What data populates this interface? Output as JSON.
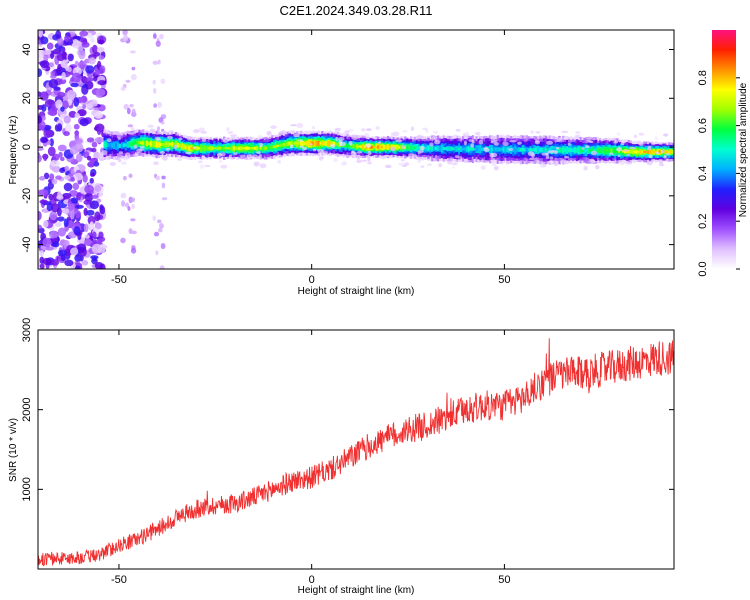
{
  "title": "C2E1.2024.349.03.28.R11",
  "chart_data": [
    {
      "type": "heatmap",
      "title": "C2E1.2024.349.03.28.R11",
      "xlabel": "Height of straight line (km)",
      "ylabel": "Frequency (Hz)",
      "xlim": [
        -71,
        94
      ],
      "ylim": [
        -50,
        48
      ],
      "x_ticks": [
        -50,
        0,
        50
      ],
      "y_ticks": [
        -40,
        -20,
        0,
        20,
        40
      ],
      "grid": false,
      "colorbar": {
        "label": "Normalized spectral amplitude",
        "range": [
          0,
          1
        ],
        "ticks": [
          "0.0",
          "0.2",
          "0.4",
          "0.6",
          "0.8"
        ],
        "colors": [
          "#ffffff",
          "#e0c0ff",
          "#a050ff",
          "#6000e0",
          "#2020ff",
          "#00b0ff",
          "#00ffd0",
          "#00ff40",
          "#a0ff00",
          "#ffff00",
          "#ff9000",
          "#ff2000",
          "#ff1080"
        ]
      },
      "noise_region_x": [
        -71,
        -54
      ],
      "ridge": [
        {
          "x": -54,
          "y": 1.0,
          "w": 3.5,
          "peak": 0.55
        },
        {
          "x": -50,
          "y": 0.5,
          "w": 3.0,
          "peak": 0.5
        },
        {
          "x": -45,
          "y": 1.8,
          "w": 3.0,
          "peak": 0.75
        },
        {
          "x": -40,
          "y": 1.0,
          "w": 3.0,
          "peak": 0.85
        },
        {
          "x": -36,
          "y": 1.2,
          "w": 2.8,
          "peak": 0.8
        },
        {
          "x": -32,
          "y": -0.5,
          "w": 2.5,
          "peak": 0.9
        },
        {
          "x": -25,
          "y": -0.5,
          "w": 2.5,
          "peak": 0.7
        },
        {
          "x": -18,
          "y": -0.5,
          "w": 2.5,
          "peak": 0.85
        },
        {
          "x": -12,
          "y": -0.5,
          "w": 2.5,
          "peak": 0.75
        },
        {
          "x": -6,
          "y": 1.5,
          "w": 2.8,
          "peak": 0.8
        },
        {
          "x": 0,
          "y": 1.5,
          "w": 2.8,
          "peak": 0.95
        },
        {
          "x": 5,
          "y": 1.5,
          "w": 2.8,
          "peak": 0.85
        },
        {
          "x": 9,
          "y": 0.5,
          "w": 2.6,
          "peak": 0.6
        },
        {
          "x": 14,
          "y": 0.0,
          "w": 2.4,
          "peak": 0.95
        },
        {
          "x": 20,
          "y": 0.0,
          "w": 2.4,
          "peak": 0.9
        },
        {
          "x": 25,
          "y": -0.2,
          "w": 2.4,
          "peak": 0.7
        },
        {
          "x": 30,
          "y": -0.5,
          "w": 2.8,
          "peak": 0.55
        },
        {
          "x": 40,
          "y": -0.8,
          "w": 3.0,
          "peak": 0.55
        },
        {
          "x": 50,
          "y": -1.0,
          "w": 3.2,
          "peak": 0.5
        },
        {
          "x": 60,
          "y": -1.2,
          "w": 3.2,
          "peak": 0.55
        },
        {
          "x": 70,
          "y": -1.3,
          "w": 3.0,
          "peak": 0.6
        },
        {
          "x": 78,
          "y": -1.5,
          "w": 2.8,
          "peak": 0.7
        },
        {
          "x": 84,
          "y": -2.0,
          "w": 2.4,
          "peak": 0.9
        },
        {
          "x": 90,
          "y": -2.0,
          "w": 2.2,
          "peak": 0.9
        },
        {
          "x": 94,
          "y": -2.0,
          "w": 2.2,
          "peak": 0.85
        }
      ]
    },
    {
      "type": "line",
      "xlabel": "Height of straight line (km)",
      "ylabel": "SNR (10 * v/v)",
      "xlim": [
        -71,
        94
      ],
      "ylim": [
        0,
        3000
      ],
      "x_ticks": [
        -50,
        0,
        50
      ],
      "y_ticks": [
        1000,
        2000,
        3000
      ],
      "grid": false,
      "series": [
        {
          "color": "#f03030",
          "trend_x": [
            -71,
            -60,
            -55,
            -50,
            -45,
            -40,
            -35,
            -30,
            -25,
            -20,
            -15,
            -10,
            -5,
            0,
            5,
            10,
            15,
            20,
            25,
            30,
            35,
            40,
            45,
            50,
            55,
            60,
            65,
            70,
            75,
            80,
            85,
            90,
            94
          ],
          "trend_y": [
            120,
            140,
            180,
            300,
            380,
            500,
            650,
            750,
            800,
            820,
            900,
            1000,
            1100,
            1150,
            1250,
            1400,
            1550,
            1650,
            1750,
            1800,
            1900,
            2000,
            2050,
            2050,
            2150,
            2350,
            2450,
            2450,
            2500,
            2550,
            2600,
            2650,
            2650
          ],
          "noise_amplitude": 150
        }
      ]
    }
  ]
}
